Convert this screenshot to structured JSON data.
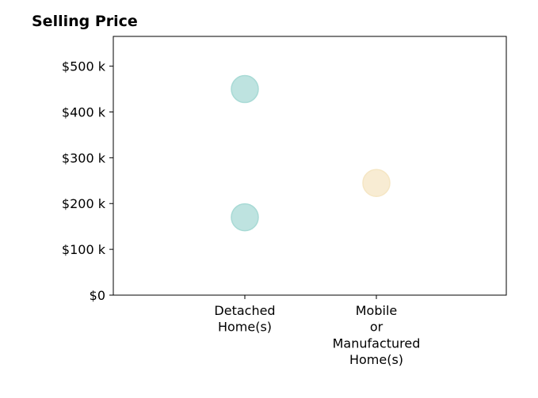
{
  "chart_data": {
    "type": "scatter",
    "title": "Selling Price",
    "xlabel": "",
    "ylabel": "",
    "categories": [
      [
        "Detached",
        "Home(s)"
      ],
      [
        "Mobile",
        "or",
        "Manufactured",
        "Home(s)"
      ]
    ],
    "points": [
      {
        "category_index": 0,
        "value": 450000,
        "color": "#a8dad5"
      },
      {
        "category_index": 0,
        "value": 170000,
        "color": "#a8dad5"
      },
      {
        "category_index": 1,
        "value": 245000,
        "color": "#f5e6c4"
      }
    ],
    "y_ticks": [
      0,
      100000,
      200000,
      300000,
      400000,
      500000
    ],
    "y_tick_labels": [
      "$0",
      "$100 k",
      "$200 k",
      "$300 k",
      "$400 k",
      "$500 k"
    ],
    "ylim": [
      0,
      565000
    ],
    "grid": false,
    "legend": "none"
  }
}
